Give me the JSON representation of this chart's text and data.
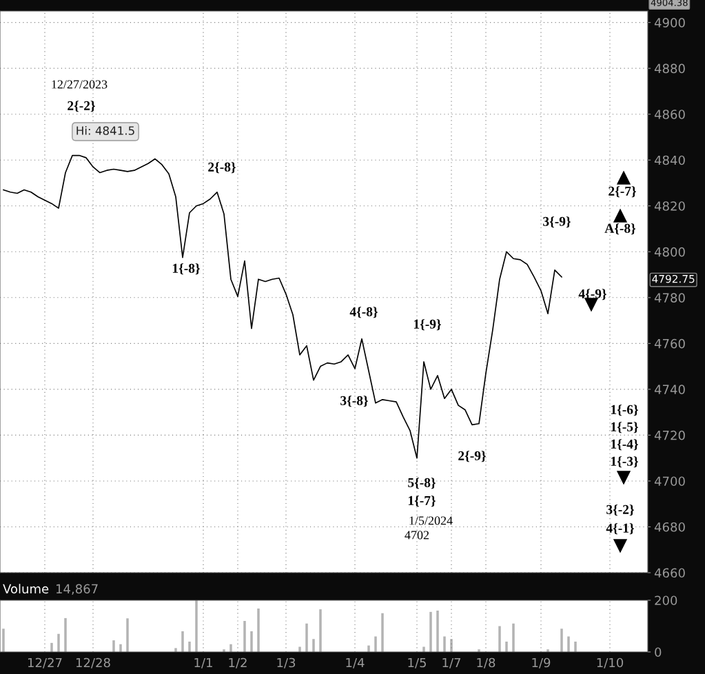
{
  "chart_data": [
    {
      "type": "line",
      "ylim": [
        4660,
        4905
      ],
      "categories": [
        null,
        null,
        null,
        null,
        null,
        null,
        null,
        null,
        null,
        null,
        null,
        null,
        null,
        null,
        null,
        null,
        null,
        null,
        null,
        null,
        null,
        null,
        null,
        null,
        null,
        null,
        null,
        null,
        null,
        null,
        null,
        null,
        null,
        null,
        null,
        null,
        null,
        null,
        null,
        null,
        null,
        null,
        null,
        null,
        null,
        null,
        null,
        null,
        null,
        null,
        null,
        null,
        null,
        null,
        null,
        null,
        null,
        null,
        null,
        null,
        null,
        null,
        null,
        null,
        null,
        null,
        null,
        null,
        null,
        null,
        null,
        null,
        null,
        null,
        null,
        null,
        null,
        null,
        null,
        null,
        null,
        null,
        null,
        null,
        null,
        null,
        null,
        null,
        null,
        null,
        null,
        null,
        null,
        null
      ],
      "yticks": [
        4660,
        4680,
        4700,
        4720,
        4740,
        4760,
        4780,
        4800,
        4820,
        4840,
        4860,
        4880,
        4900
      ],
      "tick_labels": "y",
      "grid": true,
      "series": [
        {
          "color": "#000000",
          "values": [
            4827,
            4826,
            4825.5,
            4827,
            4826,
            4824,
            4822.5,
            4821,
            4819,
            4834.5,
            4842,
            4842,
            4841,
            4837,
            4834.5,
            4835.5,
            4836,
            4835.5,
            4835,
            4835.5,
            4837,
            4838.5,
            4840.5,
            4838,
            4834,
            4824,
            4797.5,
            4817,
            4820,
            4821,
            4823,
            4826,
            4816.5,
            4788,
            4780.5,
            4796,
            4766.5,
            4788,
            4787,
            4788,
            4788.5,
            4781.5,
            4772.5,
            4755,
            4759,
            4744,
            4750,
            4751.5,
            4751,
            4752,
            4755,
            4749,
            4762,
            4748,
            4734,
            4735.5,
            4735,
            4734.5,
            4728,
            4722,
            4710,
            4752,
            4740,
            4746,
            4736,
            4740,
            4733,
            4731,
            4724.5,
            4725,
            4747,
            4766,
            4788,
            4800,
            4797,
            4796.5,
            4794.5,
            4789,
            4783,
            4773,
            4792,
            4789,
            null,
            null,
            null,
            null,
            null,
            null,
            null,
            null,
            null,
            null,
            null,
            null
          ]
        }
      ],
      "annotations": [
        "4904.38",
        "4792.75",
        "12/27/2023",
        "2{-2}",
        "Hi: 4841.5",
        "2{-8}",
        "1{-8}",
        "4{-8}",
        "1{-9}",
        "3{-8}",
        "2{-9}",
        "5{-8}",
        "1{-7}",
        "1/5/2024",
        "4702",
        "3{-9}",
        "2{-7}",
        "A{-8}",
        "4{-9}",
        "1{-6}",
        "1{-5}",
        "1{-4}",
        "1{-3}",
        "3{-2}",
        "4{-1}"
      ]
    },
    {
      "type": "bar",
      "title": "Volume",
      "subtitle": "14,867",
      "ylim": [
        0,
        200
      ],
      "yticks": [
        0,
        200
      ],
      "categories": [
        null,
        null,
        null,
        null,
        null,
        null,
        "12/27",
        null,
        null,
        null,
        null,
        null,
        null,
        "12/28",
        null,
        null,
        null,
        null,
        null,
        null,
        null,
        null,
        null,
        null,
        null,
        null,
        null,
        null,
        null,
        "1/1",
        null,
        null,
        null,
        null,
        "1/2",
        null,
        null,
        null,
        null,
        null,
        null,
        "1/3",
        null,
        null,
        null,
        null,
        null,
        null,
        null,
        null,
        null,
        "1/4",
        null,
        null,
        null,
        null,
        null,
        null,
        null,
        null,
        "1/5",
        null,
        null,
        null,
        null,
        "1/7",
        null,
        null,
        null,
        null,
        "1/8",
        null,
        null,
        null,
        null,
        null,
        null,
        null,
        "1/9",
        null,
        null,
        null,
        null,
        null,
        null,
        null,
        null,
        null,
        "1/10",
        null,
        null,
        null,
        null,
        null
      ],
      "grid": "x",
      "series": [
        {
          "color": "#b3b3b3",
          "values": [
            90,
            null,
            null,
            null,
            null,
            null,
            null,
            35,
            70,
            131,
            null,
            null,
            null,
            null,
            null,
            null,
            45,
            30,
            130,
            null,
            null,
            null,
            null,
            null,
            null,
            15,
            80,
            40,
            200,
            null,
            null,
            null,
            10,
            30,
            null,
            120,
            80,
            168,
            null,
            null,
            null,
            null,
            null,
            20,
            110,
            50,
            165,
            null,
            null,
            null,
            null,
            null,
            null,
            25,
            60,
            150,
            null,
            null,
            null,
            null,
            null,
            20,
            155,
            160,
            60,
            50,
            null,
            null,
            null,
            10,
            null,
            null,
            100,
            40,
            110,
            null,
            null,
            null,
            null,
            10,
            null,
            90,
            60,
            40,
            null,
            null,
            null,
            null,
            null,
            null,
            null,
            null,
            null,
            null
          ]
        }
      ]
    }
  ]
}
